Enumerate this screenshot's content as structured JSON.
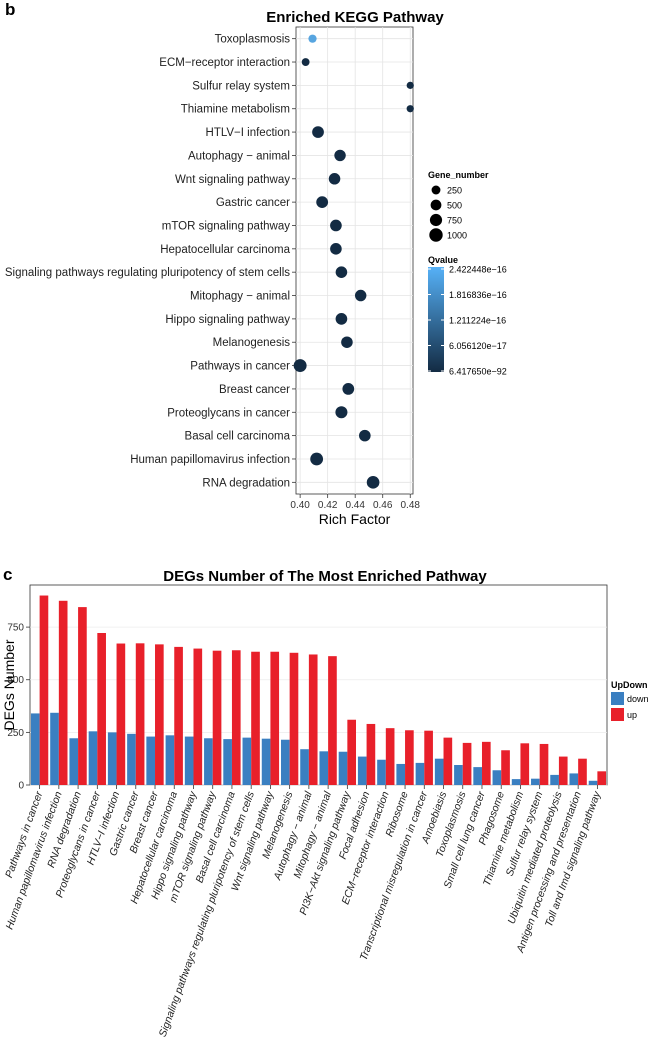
{
  "chart_data": [
    {
      "type": "scatter",
      "panel_label": "b",
      "title": "Enriched KEGG Pathway",
      "xlabel": "Rich Factor",
      "ylabel": "",
      "xlim": [
        0.397,
        0.482
      ],
      "x_ticks": [
        0.4,
        0.42,
        0.44,
        0.46,
        0.48
      ],
      "x_tick_labels": [
        "0.40",
        "0.42",
        "0.44",
        "0.46",
        "0.48"
      ],
      "grid": true,
      "categories": [
        "Toxoplasmosis",
        "ECM−receptor interaction",
        "Sulfur relay system",
        "Thiamine metabolism",
        "HTLV−I infection",
        "Autophagy − animal",
        "Wnt signaling pathway",
        "Gastric cancer",
        "mTOR signaling pathway",
        "Hepatocellular carcinoma",
        "Signaling pathways regulating pluripotency of stem cells",
        "Mitophagy − animal",
        "Hippo signaling pathway",
        "Melanogenesis",
        "Pathways in cancer",
        "Breast cancer",
        "Proteoglycans in cancer",
        "Basal cell carcinoma",
        "Human papillomavirus infection",
        "RNA degradation"
      ],
      "rich_factor": [
        0.409,
        0.404,
        0.48,
        0.48,
        0.413,
        0.429,
        0.425,
        0.416,
        0.426,
        0.426,
        0.43,
        0.444,
        0.43,
        0.434,
        0.4,
        0.435,
        0.43,
        0.447,
        0.412,
        0.453
      ],
      "gene_number": [
        180,
        150,
        100,
        100,
        660,
        610,
        630,
        670,
        650,
        640,
        635,
        610,
        650,
        630,
        900,
        670,
        720,
        640,
        870,
        840
      ],
      "qvalue_color": [
        "#57a5e0",
        "#132b43",
        "#132b43",
        "#132b43",
        "#132b43",
        "#132b43",
        "#132b43",
        "#132b43",
        "#132b43",
        "#132b43",
        "#132b43",
        "#132b43",
        "#132b43",
        "#132b43",
        "#132b43",
        "#132b43",
        "#132b43",
        "#132b43",
        "#132b43",
        "#132b43"
      ],
      "legend_size": {
        "title": "Gene_number",
        "labels": [
          "250",
          "500",
          "750",
          "1000"
        ],
        "values": [
          250,
          500,
          750,
          1000
        ]
      },
      "legend_color": {
        "title": "Qvalue",
        "labels": [
          "2.422448e−16",
          "1.816836e−16",
          "1.211224e−16",
          "6.056120e−17",
          "6.417650e−92"
        ],
        "low_color": "#132b43",
        "high_color": "#56b1f7"
      }
    },
    {
      "type": "bar",
      "panel_label": "c",
      "title": "DEGs Number of The Most Enriched Pathway",
      "xlabel": "",
      "ylabel": "DEGs Number",
      "ylim": [
        0,
        950
      ],
      "y_ticks": [
        0,
        250,
        500,
        750
      ],
      "grid": true,
      "categories": [
        "Pathways in cancer",
        "Human papillomavirus infection",
        "RNA degradation",
        "Proteoglycans in cancer",
        "HTLV−I infection",
        "Gastric cancer",
        "Breast cancer",
        "Hepatocellular carcinoma",
        "Hippo signaling pathway",
        "mTOR signaling pathway",
        "Basal cell carcinoma",
        "Signaling pathways regulating pluripotency of stem cells",
        "Wnt signaling pathway",
        "Melanogenesis",
        "Autophagy − animal",
        "Mitophagy − animal",
        "PI3K−Akt signaling pathway",
        "Focal adhesion",
        "ECM−receptor interaction",
        "Ribosome",
        "Transcriptional misregulation in cancer",
        "Amoebiasis",
        "Toxoplasmosis",
        "Small cell lung cancer",
        "Phagosome",
        "Thiamine metabolism",
        "Sulfur relay system",
        "Ubiquitin mediated proteolysis",
        "Antigen processing and presentation",
        "Toll and Imd signaling pathway"
      ],
      "series": [
        {
          "name": "down",
          "color": "#3a7fc1",
          "values": [
            340,
            343,
            222,
            255,
            250,
            243,
            230,
            236,
            230,
            222,
            218,
            225,
            220,
            215,
            170,
            160,
            158,
            135,
            120,
            100,
            105,
            125,
            95,
            85,
            70,
            28,
            30,
            48,
            55,
            20
          ]
        },
        {
          "name": "up",
          "color": "#e8202a",
          "values": [
            900,
            875,
            845,
            722,
            672,
            673,
            668,
            656,
            648,
            638,
            640,
            633,
            633,
            628,
            620,
            612,
            310,
            290,
            270,
            260,
            258,
            225,
            200,
            205,
            165,
            198,
            195,
            135,
            125,
            65
          ]
        }
      ],
      "legend_title": "UpDown"
    }
  ]
}
